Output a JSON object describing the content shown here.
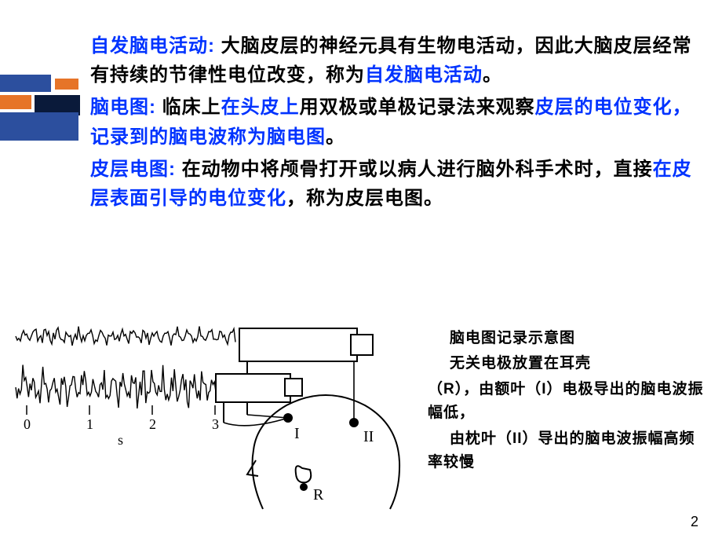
{
  "decoration": {
    "colors": {
      "blue": "#2c4f9e",
      "orange": "#e67428",
      "dark": "#0a1a3a"
    }
  },
  "definitions": [
    {
      "term": "自发脑电活动:",
      "body_pre": " 大脑皮层的神经元具有生物电活动，因此大脑皮层经常有持续的节律性电位改变，称为",
      "body_hl": "自发脑电活动",
      "body_post": "。"
    },
    {
      "term": "脑电图:",
      "body_pre": " 临床上",
      "body_hl1": "在头皮上",
      "body_mid": "用双极或单极记录法来观察",
      "body_hl2": "皮层的电位变化，记录到的脑电波称为脑电图",
      "body_post": "。"
    },
    {
      "term": "皮层电图:",
      "body_pre": " 在动物中将颅骨打开或以病人进行脑外科手术时，直接",
      "body_hl": "在皮层表面引导的电位变化",
      "body_post": "，称为皮层电图。"
    }
  ],
  "caption": {
    "line1": "脑电图记录示意图",
    "line2": "无关电极放置在耳壳",
    "line3": "（R），由额叶（I）电极导出的脑电波振幅低，",
    "line4": "由枕叶（II）导出的脑电波振幅高频率较慢"
  },
  "diagram": {
    "axis_labels": [
      "0",
      "1",
      "2",
      "3"
    ],
    "axis_unit": "s",
    "electrode_labels": [
      "I",
      "II",
      "R"
    ],
    "wave1_color": "#000000",
    "wave2_color": "#000000",
    "stroke_width": 1.4
  },
  "page_number": "2"
}
